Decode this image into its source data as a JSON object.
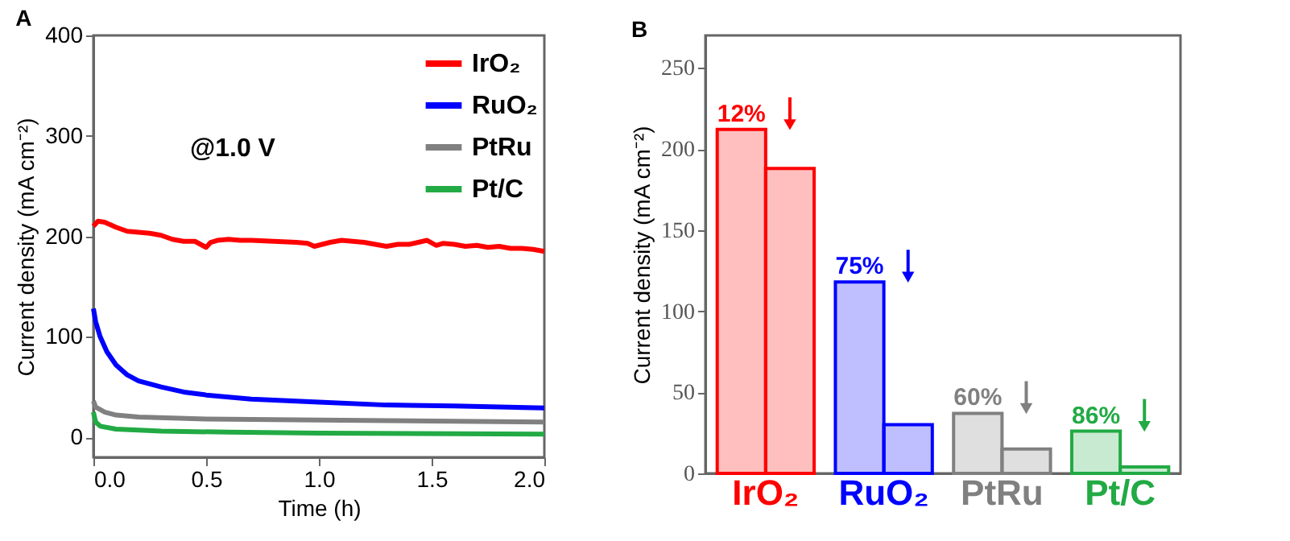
{
  "chart_data": [
    {
      "type": "line",
      "title": "A",
      "xlabel": "Time (h)",
      "ylabel": "Current density (mA cm⁻²)",
      "annotations": [
        "@1.0 V"
      ],
      "legend": "top right",
      "xlim": [
        0,
        2
      ],
      "ylim": [
        -20,
        400
      ],
      "xticks": [
        {
          "value": 0,
          "label": "0.0"
        },
        {
          "value": 0.5,
          "label": "0.5"
        },
        {
          "value": 1,
          "label": "1.0"
        },
        {
          "value": 1.5,
          "label": "1.5"
        },
        {
          "value": 2,
          "label": "2.0"
        }
      ],
      "yticks": [
        0,
        100,
        200,
        300,
        400
      ],
      "series": [
        {
          "name": "IrO₂",
          "color": "#ff0000",
          "x": [
            0,
            0.02,
            0.05,
            0.08,
            0.1,
            0.15,
            0.2,
            0.25,
            0.3,
            0.35,
            0.4,
            0.45,
            0.5,
            0.52,
            0.55,
            0.6,
            0.65,
            0.7,
            0.8,
            0.9,
            0.95,
            0.98,
            1.05,
            1.1,
            1.15,
            1.2,
            1.25,
            1.3,
            1.35,
            1.4,
            1.48,
            1.52,
            1.55,
            1.6,
            1.65,
            1.7,
            1.75,
            1.8,
            1.85,
            1.9,
            1.95,
            2.0
          ],
          "values": [
            210,
            215,
            214,
            211,
            209,
            205,
            204,
            203,
            201,
            197,
            195,
            195,
            189,
            194,
            196,
            197,
            196,
            196,
            195,
            194,
            193,
            190,
            194,
            196,
            195,
            194,
            192,
            190,
            192,
            192,
            196,
            191,
            193,
            192,
            190,
            191,
            189,
            190,
            188,
            188,
            187,
            185
          ]
        },
        {
          "name": "RuO₂",
          "color": "#0000ff",
          "x": [
            0,
            0.01,
            0.03,
            0.06,
            0.1,
            0.15,
            0.2,
            0.3,
            0.4,
            0.5,
            0.7,
            1.0,
            1.3,
            1.6,
            2.0
          ],
          "values": [
            128,
            115,
            100,
            85,
            72,
            62,
            56,
            50,
            45,
            42,
            38,
            35,
            32,
            31,
            29
          ]
        },
        {
          "name": "PtRu",
          "color": "#808080",
          "x": [
            0,
            0.01,
            0.05,
            0.1,
            0.2,
            0.5,
            1.0,
            1.5,
            2.0
          ],
          "values": [
            36,
            30,
            25,
            22,
            20,
            18,
            17,
            16,
            15
          ]
        },
        {
          "name": "Pt/C",
          "color": "#22aa44",
          "x": [
            0,
            0.01,
            0.03,
            0.1,
            0.3,
            0.6,
            1.0,
            2.0
          ],
          "values": [
            25,
            15,
            11,
            8,
            6,
            5,
            4,
            3
          ]
        }
      ]
    },
    {
      "type": "bar",
      "title": "B",
      "ylabel": "Current density (mA cm⁻²)",
      "categories": [
        "IrO₂",
        "RuO₂",
        "PtRu",
        "Pt/C"
      ],
      "ylim": [
        0,
        270
      ],
      "yticks": [
        0,
        50,
        100,
        150,
        200,
        250
      ],
      "series": [
        {
          "colors": [
            "#ff0000",
            "#0000ff",
            "#808080",
            "#22aa44"
          ],
          "values": [
            212,
            118,
            37,
            26
          ]
        },
        {
          "colors": [
            "#ff0000",
            "#0000ff",
            "#808080",
            "#22aa44"
          ],
          "values": [
            188,
            30,
            15,
            4
          ]
        }
      ],
      "annotations": [
        {
          "text": "12%",
          "x": "IrO₂",
          "y": 212
        },
        {
          "text": "75%",
          "x": "RuO₂",
          "y": 118
        },
        {
          "text": "60%",
          "x": "PtRu",
          "y": 37
        },
        {
          "text": "86%",
          "x": "Pt/C",
          "y": 26
        }
      ]
    }
  ]
}
